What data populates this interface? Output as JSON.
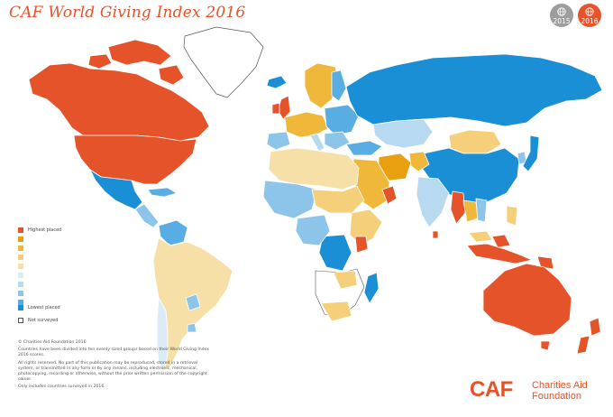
{
  "title": "CAF World Giving Index 2016",
  "year_toggle": {
    "option_2015": "2015",
    "option_2016": "2016"
  },
  "legend": {
    "highest": "Highest placed",
    "lowest": "Lowest placed",
    "not_surveyed": "Not surveyed",
    "colors": [
      "#e5532a",
      "#e8a010",
      "#f0b83a",
      "#f5cf7a",
      "#f6e0a8",
      "#dcecf7",
      "#b8daf1",
      "#8cc4ea",
      "#58aee2",
      "#1a8fd6"
    ]
  },
  "notes": {
    "copyright": "© Charities Aid Foundation 2016",
    "method": "Countries have been divided into ten evenly sized groups based on their World Giving Index 2016 scores.",
    "rights": "All rights reserved. No part of this publication may be reproduced, stored in a retrieval system, or transmitted in any form or by any means, including electronic, mechanical, photocopying, recording or otherwise, without the prior written permission of the copyright owner.",
    "footnote": "Only includes countries surveyed in 2016."
  },
  "brand": {
    "logo": "CAF",
    "name_line1": "Charities Aid",
    "name_line2": "Foundation"
  }
}
